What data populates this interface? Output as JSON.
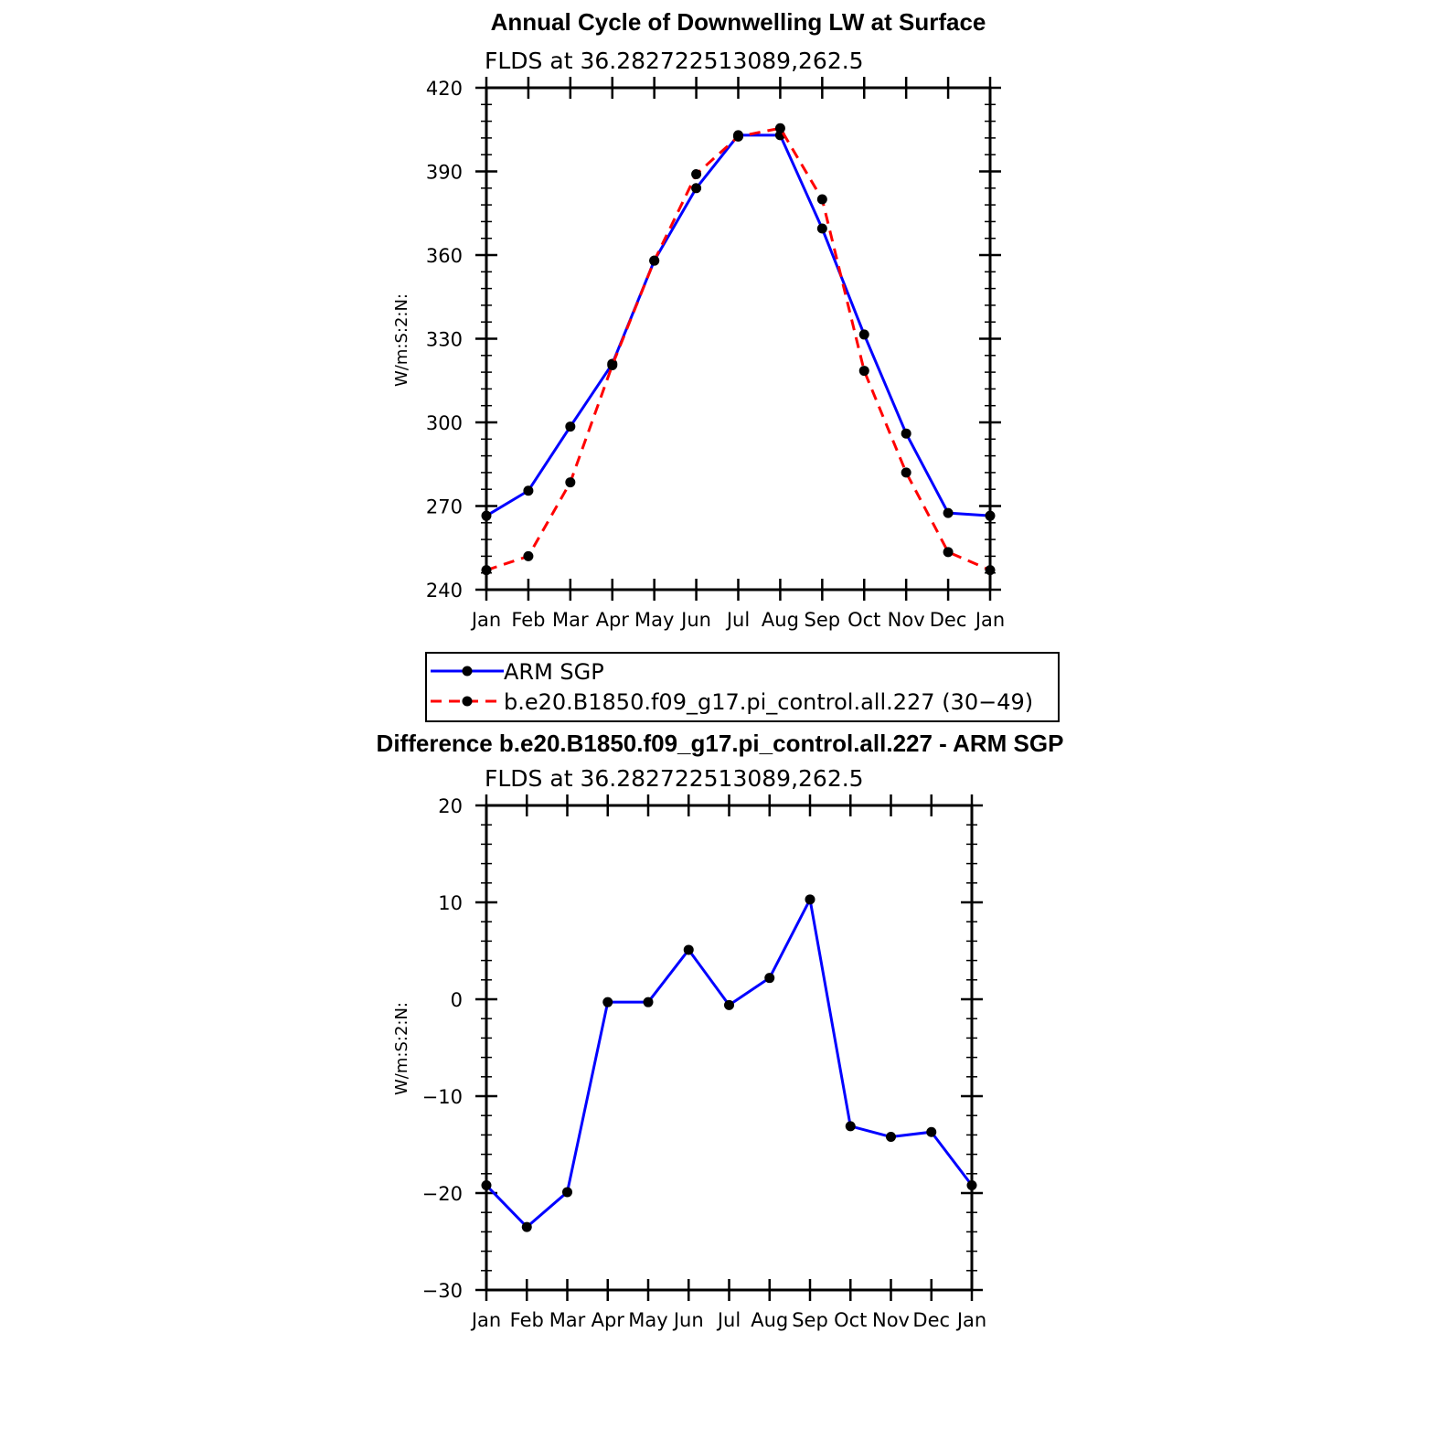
{
  "chart_data": [
    {
      "type": "line",
      "title": "Annual Cycle of Downwelling LW at Surface",
      "subtitle": "FLDS at 36.282722513089,262.5",
      "ylabel": "W/m:S:2:N:",
      "xlabel": "",
      "ylim": [
        240,
        420
      ],
      "yticks": [
        "420",
        "390",
        "360",
        "330",
        "300",
        "270",
        "240"
      ],
      "categories": [
        "Jan",
        "Feb",
        "Mar",
        "Apr",
        "May",
        "Jun",
        "Jul",
        "Aug",
        "Sep",
        "Oct",
        "Nov",
        "Dec",
        "Jan"
      ],
      "series": [
        {
          "name": "ARM SGP",
          "color": "#0000ff",
          "dash": "solid",
          "values": [
            266.5,
            275.5,
            298.5,
            321,
            358,
            384,
            403,
            403,
            369.5,
            331.5,
            296,
            267.5,
            266.5
          ]
        },
        {
          "name": "b.e20.B1850.f09_g17.pi_control.all.227 (30−49)",
          "color": "#ff0000",
          "dash": "dashed",
          "values": [
            247,
            252,
            278.5,
            320.5,
            358,
            389,
            402.5,
            405.5,
            380,
            318.5,
            282,
            253.5,
            247
          ]
        }
      ],
      "legend": "below"
    },
    {
      "type": "line",
      "title": "Difference b.e20.B1850.f09_g17.pi_control.all.227 - ARM SGP",
      "subtitle": "FLDS at 36.282722513089,262.5",
      "ylabel": "W/m:S:2:N:",
      "xlabel": "",
      "ylim": [
        -30,
        20
      ],
      "yticks": [
        "20",
        "10",
        "0",
        "−10",
        "−20",
        "−30"
      ],
      "categories": [
        "Jan",
        "Feb",
        "Mar",
        "Apr",
        "May",
        "Jun",
        "Jul",
        "Aug",
        "Sep",
        "Oct",
        "Nov",
        "Dec",
        "Jan"
      ],
      "series": [
        {
          "color": "#0000ff",
          "dash": "solid",
          "values": [
            -19.2,
            -23.5,
            -19.9,
            -0.3,
            -0.3,
            5.1,
            -0.6,
            2.2,
            10.3,
            -13.1,
            -14.2,
            -13.7,
            -19.2
          ]
        }
      ]
    }
  ]
}
